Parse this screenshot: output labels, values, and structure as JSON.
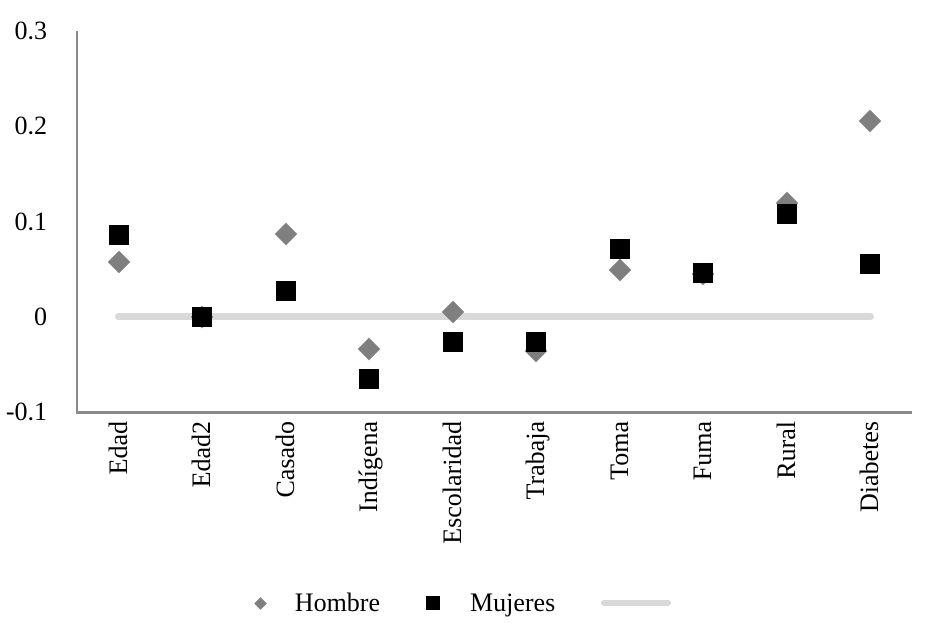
{
  "chart_data": {
    "type": "scatter",
    "title": "",
    "xlabel": "",
    "ylabel": "",
    "categories": [
      "Edad",
      "Edad2",
      "Casado",
      "Indígena",
      "Escolaridad",
      "Trabaja",
      "Toma",
      "Fuma",
      "Rural",
      "Diabetes"
    ],
    "series": [
      {
        "name": "Hombre",
        "marker": "diamond",
        "color": "#7f7f7f",
        "values": [
          0.057,
          0.0,
          0.087,
          -0.034,
          0.005,
          -0.036,
          0.049,
          0.045,
          0.119,
          0.205
        ]
      },
      {
        "name": "Mujeres",
        "marker": "square",
        "color": "#000000",
        "values": [
          0.086,
          0.0,
          0.027,
          -0.065,
          -0.026,
          -0.027,
          0.071,
          0.046,
          0.108,
          0.055
        ]
      }
    ],
    "zero_line": {
      "value": 0,
      "color": "#d9d9d9"
    },
    "ylim": [
      -0.1,
      0.3
    ],
    "yticks": [
      {
        "value": 0.3,
        "label": "0.3"
      },
      {
        "value": 0.2,
        "label": "0.2"
      },
      {
        "value": 0.1,
        "label": "0.1"
      },
      {
        "value": 0,
        "label": "0"
      },
      {
        "value": -0.1,
        "label": "-0.1"
      }
    ],
    "grid": false,
    "legend_position": "bottom"
  },
  "colors": {
    "axis": "#8a8a8a",
    "zero_line": "#d9d9d9",
    "hombre": "#7f7f7f",
    "mujeres": "#000000",
    "background": "#ffffff",
    "text": "#000000"
  }
}
